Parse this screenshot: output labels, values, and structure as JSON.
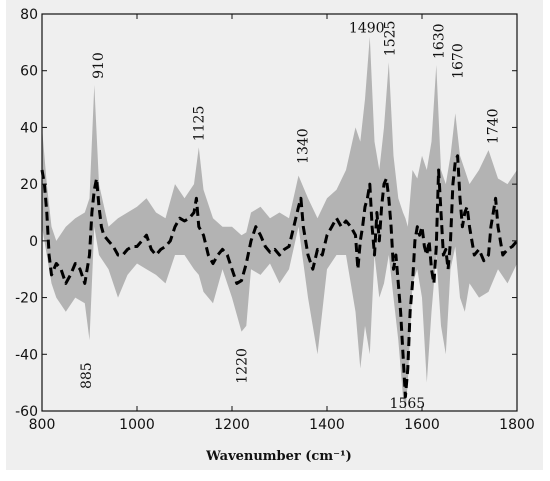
{
  "chart_data": {
    "type": "line",
    "title": "",
    "xlabel": "Wavenumber (cm⁻¹)",
    "ylabel": "",
    "xlim": [
      800,
      1800
    ],
    "ylim": [
      -60,
      80
    ],
    "x_ticks": [
      800,
      1000,
      1200,
      1400,
      1600,
      1800
    ],
    "y_ticks": [
      -60,
      -40,
      -20,
      0,
      20,
      40,
      60,
      80
    ],
    "grid": false,
    "legend": "none",
    "colors": {
      "band": "#b3b3b3",
      "line": "#000000",
      "panel": "#efefef"
    },
    "band_lower": {
      "x": [
        800,
        810,
        820,
        830,
        850,
        870,
        890,
        900,
        910,
        920,
        940,
        960,
        980,
        1000,
        1020,
        1040,
        1060,
        1080,
        1100,
        1120,
        1130,
        1140,
        1160,
        1180,
        1200,
        1220,
        1230,
        1240,
        1260,
        1280,
        1300,
        1320,
        1340,
        1360,
        1380,
        1400,
        1420,
        1440,
        1460,
        1470,
        1480,
        1490,
        1500,
        1510,
        1520,
        1530,
        1540,
        1550,
        1560,
        1565,
        1570,
        1580,
        1590,
        1600,
        1610,
        1620,
        1630,
        1640,
        1650,
        1660,
        1670,
        1680,
        1690,
        1700,
        1720,
        1740,
        1760,
        1780,
        1800
      ],
      "y": [
        5,
        -5,
        -15,
        -20,
        -25,
        -20,
        -22,
        -35,
        5,
        -5,
        -10,
        -20,
        -12,
        -8,
        -10,
        -12,
        -15,
        -5,
        -5,
        -10,
        -12,
        -18,
        -22,
        -10,
        -20,
        -32,
        -30,
        -10,
        -12,
        -8,
        -15,
        -10,
        5,
        -20,
        -40,
        -10,
        -5,
        -5,
        -25,
        -45,
        -30,
        -40,
        -5,
        -20,
        -15,
        -5,
        -20,
        -35,
        -55,
        -60,
        -50,
        -15,
        -10,
        -20,
        -50,
        -25,
        -5,
        -30,
        -40,
        -10,
        -2,
        -20,
        -25,
        -15,
        -20,
        -18,
        -10,
        -15,
        -8
      ]
    },
    "band_upper": {
      "x": [
        800,
        810,
        820,
        830,
        850,
        870,
        890,
        900,
        910,
        920,
        940,
        960,
        980,
        1000,
        1020,
        1040,
        1060,
        1080,
        1100,
        1120,
        1130,
        1140,
        1160,
        1180,
        1200,
        1220,
        1230,
        1240,
        1260,
        1280,
        1300,
        1320,
        1340,
        1360,
        1380,
        1400,
        1420,
        1440,
        1460,
        1470,
        1480,
        1490,
        1500,
        1510,
        1520,
        1530,
        1540,
        1550,
        1560,
        1565,
        1570,
        1580,
        1590,
        1600,
        1610,
        1620,
        1630,
        1640,
        1650,
        1660,
        1670,
        1680,
        1690,
        1700,
        1720,
        1740,
        1760,
        1780,
        1800
      ],
      "y": [
        40,
        20,
        5,
        0,
        5,
        8,
        10,
        15,
        55,
        20,
        5,
        8,
        10,
        12,
        15,
        10,
        8,
        20,
        15,
        20,
        33,
        18,
        8,
        5,
        5,
        2,
        3,
        10,
        12,
        8,
        10,
        8,
        23,
        15,
        8,
        15,
        18,
        25,
        40,
        35,
        50,
        72,
        35,
        25,
        40,
        63,
        30,
        15,
        10,
        8,
        5,
        25,
        22,
        30,
        25,
        35,
        62,
        25,
        20,
        30,
        45,
        30,
        25,
        20,
        25,
        32,
        22,
        20,
        25
      ]
    },
    "series": [
      {
        "x": [
          800,
          805,
          810,
          815,
          820,
          830,
          840,
          850,
          860,
          870,
          880,
          890,
          900,
          905,
          910,
          915,
          920,
          925,
          930,
          940,
          950,
          960,
          970,
          980,
          990,
          1000,
          1010,
          1020,
          1030,
          1040,
          1050,
          1060,
          1070,
          1080,
          1090,
          1100,
          1110,
          1120,
          1125,
          1130,
          1140,
          1150,
          1160,
          1170,
          1180,
          1190,
          1200,
          1210,
          1220,
          1230,
          1240,
          1250,
          1260,
          1270,
          1280,
          1290,
          1300,
          1310,
          1320,
          1330,
          1340,
          1345,
          1350,
          1360,
          1370,
          1380,
          1390,
          1400,
          1410,
          1420,
          1430,
          1440,
          1450,
          1460,
          1465,
          1470,
          1475,
          1480,
          1485,
          1490,
          1495,
          1500,
          1505,
          1510,
          1515,
          1520,
          1525,
          1530,
          1535,
          1540,
          1545,
          1550,
          1555,
          1560,
          1565,
          1570,
          1575,
          1580,
          1585,
          1590,
          1595,
          1600,
          1605,
          1610,
          1615,
          1620,
          1625,
          1630,
          1635,
          1640,
          1645,
          1650,
          1655,
          1660,
          1665,
          1670,
          1675,
          1680,
          1685,
          1690,
          1695,
          1700,
          1710,
          1720,
          1730,
          1740,
          1745,
          1750,
          1755,
          1760,
          1770,
          1780,
          1790,
          1800
        ],
        "y": [
          25,
          20,
          10,
          -5,
          -12,
          -8,
          -10,
          -15,
          -12,
          -8,
          -10,
          -15,
          -5,
          10,
          18,
          22,
          12,
          5,
          2,
          0,
          -2,
          -5,
          -5,
          -3,
          -2,
          -2,
          0,
          2,
          -3,
          -5,
          -3,
          -2,
          0,
          5,
          8,
          7,
          8,
          10,
          15,
          5,
          2,
          -5,
          -8,
          -5,
          -3,
          -5,
          -10,
          -15,
          -14,
          -8,
          0,
          5,
          2,
          -2,
          -4,
          -3,
          -5,
          -3,
          -2,
          5,
          12,
          15,
          5,
          -5,
          -10,
          -3,
          -5,
          2,
          5,
          8,
          5,
          7,
          5,
          2,
          -10,
          0,
          5,
          12,
          15,
          20,
          5,
          -5,
          10,
          0,
          12,
          20,
          22,
          15,
          5,
          -10,
          -5,
          -15,
          -25,
          -40,
          -55,
          -45,
          -25,
          -15,
          0,
          5,
          2,
          5,
          -2,
          -5,
          0,
          -10,
          -15,
          -2,
          25,
          10,
          -5,
          -3,
          -10,
          0,
          20,
          28,
          30,
          15,
          5,
          10,
          12,
          5,
          -5,
          -3,
          -7,
          -5,
          5,
          10,
          15,
          5,
          -5,
          -3,
          -2,
          0
        ]
      }
    ],
    "annotations": [
      {
        "text": "910",
        "x": 918,
        "y": 55
      },
      {
        "text": "885",
        "x": 893,
        "y": -40
      },
      {
        "text": "1125",
        "x": 1130,
        "y": 33
      },
      {
        "text": "1220",
        "x": 1220,
        "y": -35
      },
      {
        "text": "1340",
        "x": 1348,
        "y": 25
      },
      {
        "text": "1490",
        "x": 1490,
        "y": 72
      },
      {
        "text": "1525",
        "x": 1532,
        "y": 63
      },
      {
        "text": "1565",
        "x": 1565,
        "y": -60
      },
      {
        "text": "1630",
        "x": 1635,
        "y": 62
      },
      {
        "text": "1670",
        "x": 1675,
        "y": 55
      },
      {
        "text": "1740",
        "x": 1748,
        "y": 32
      }
    ]
  }
}
